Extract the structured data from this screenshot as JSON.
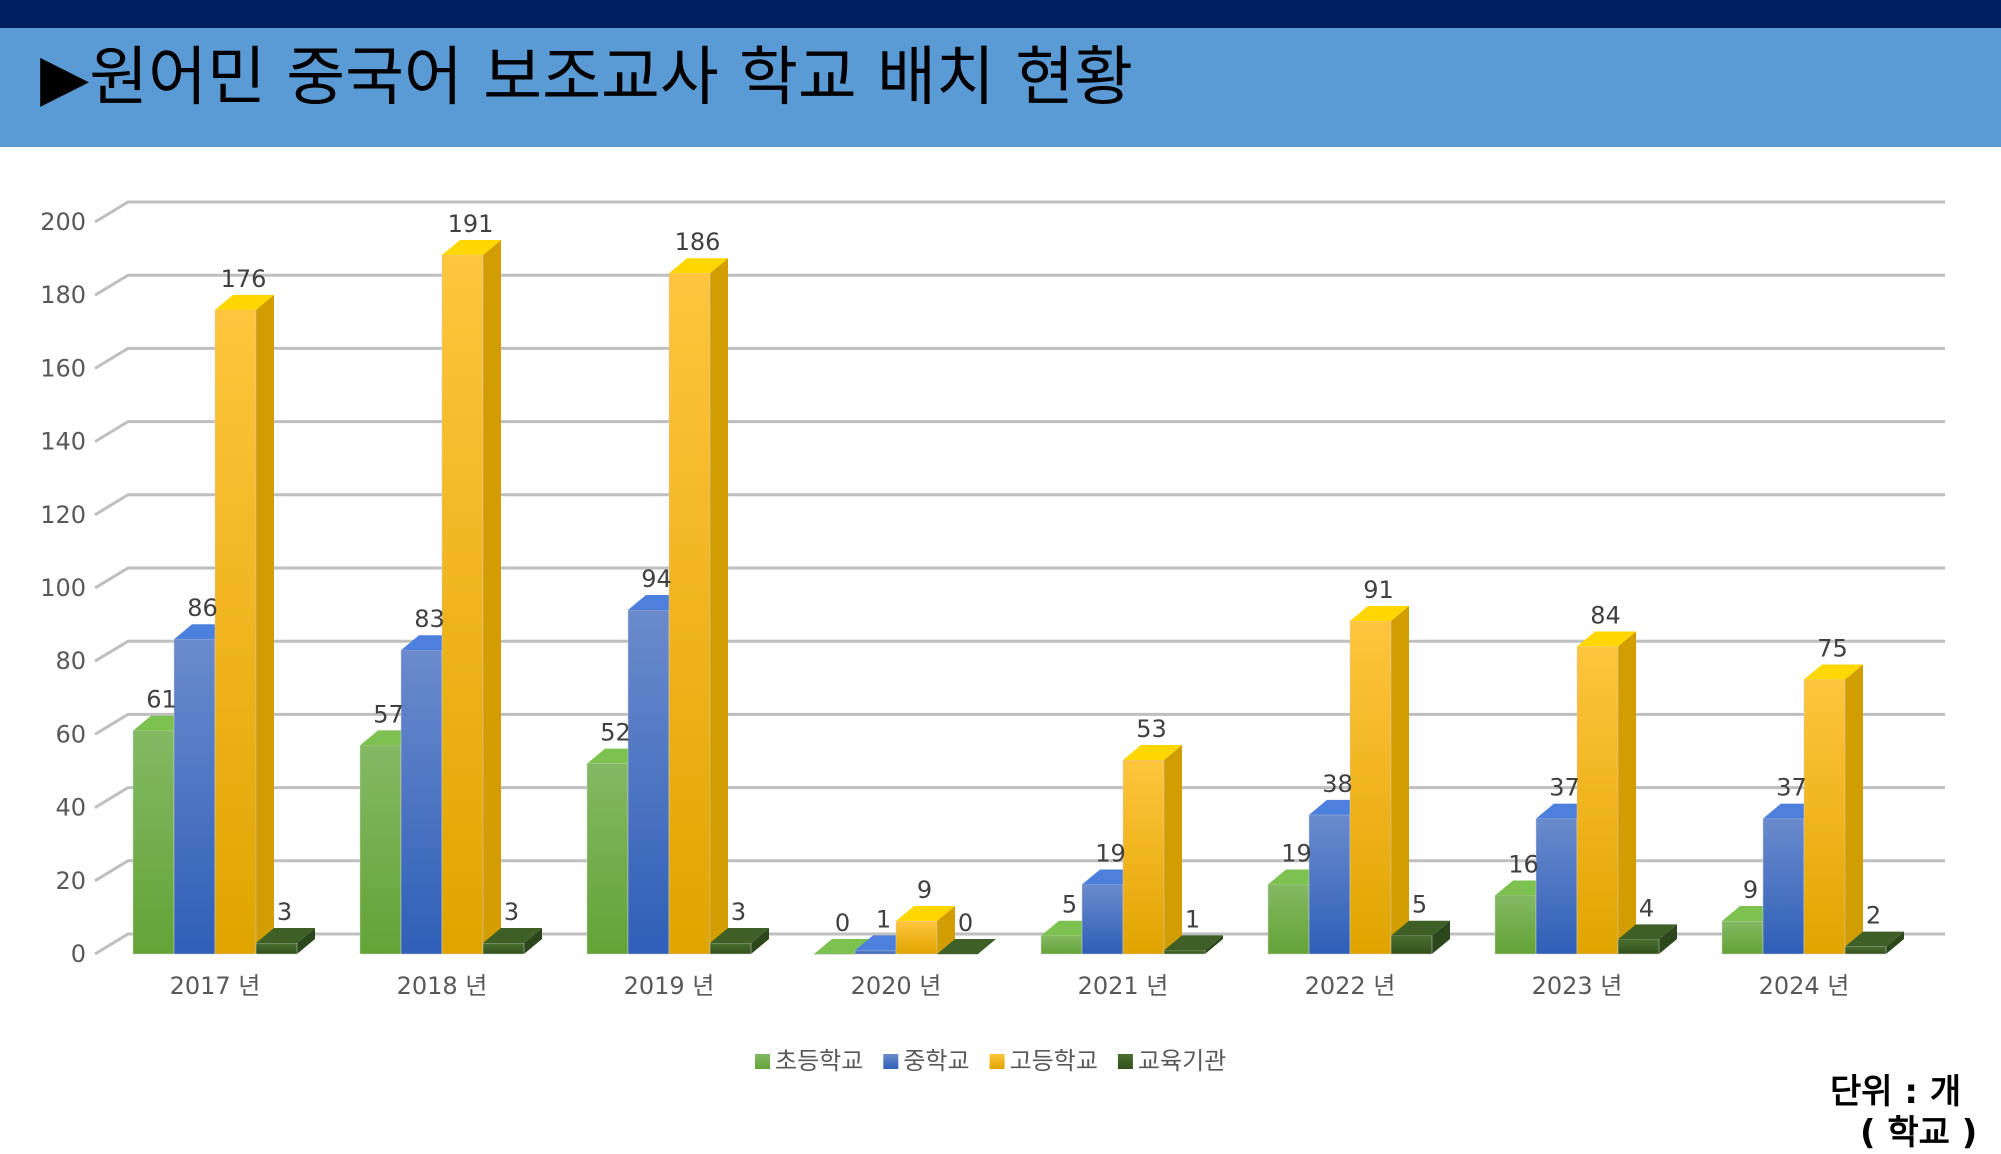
{
  "title": "▶원어민 중국어 보조교사 학교 배치 현황",
  "unit_label": "단위 :  개",
  "unit_sub": "( 학교 )",
  "chart_data": {
    "type": "bar",
    "title": "원어민 중국어 보조교사 학교 배치 현황",
    "categories": [
      "2017 년",
      "2018 년",
      "2019 년",
      "2020 년",
      "2021 년",
      "2022 년",
      "2023 년",
      "2024 년"
    ],
    "series": [
      {
        "name": "초등학교",
        "color": "#70ad47",
        "values": [
          61,
          57,
          52,
          0,
          5,
          19,
          16,
          9
        ]
      },
      {
        "name": "중학교",
        "color": "#4472c4",
        "values": [
          86,
          83,
          94,
          1,
          19,
          38,
          37,
          37
        ]
      },
      {
        "name": "고등학교",
        "color": "#ffc000",
        "values": [
          176,
          191,
          186,
          9,
          53,
          91,
          84,
          75
        ]
      },
      {
        "name": "교육기관",
        "color": "#375623",
        "values": [
          3,
          3,
          3,
          0,
          1,
          5,
          4,
          2
        ]
      }
    ],
    "yticks": [
      0,
      20,
      40,
      60,
      80,
      100,
      120,
      140,
      160,
      180,
      200
    ],
    "ylim": [
      0,
      200
    ],
    "xlabel": "",
    "ylabel": "",
    "grid": true,
    "legend_position": "bottom"
  }
}
